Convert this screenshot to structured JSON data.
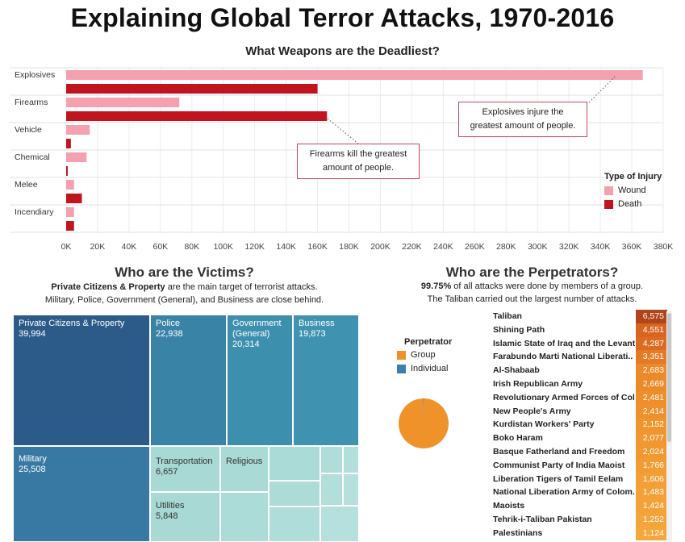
{
  "page": {
    "title": "Explaining Global Terror Attacks, 1970-2016"
  },
  "weapons": {
    "subtitle": "What Weapons are the Deadliest?",
    "callout_explosives": [
      "Explosives injure the",
      "greatest amount of people."
    ],
    "callout_firearms": [
      "Firearms kill the greatest",
      "amount of people."
    ],
    "legend_title": "Type of Injury"
  },
  "chart_data": {
    "type": "bar",
    "orientation": "horizontal",
    "categories": [
      "Explosives",
      "Firearms",
      "Vehicle",
      "Chemical",
      "Melee",
      "Incendiary"
    ],
    "series": [
      {
        "name": "Wound",
        "color": "#f5a0ae",
        "values": [
          367000,
          72000,
          15000,
          13000,
          5000,
          5000
        ]
      },
      {
        "name": "Death",
        "color": "#c0141f",
        "values": [
          160000,
          166000,
          3000,
          1000,
          10000,
          5000
        ]
      }
    ],
    "xticks": [
      "0K",
      "20K",
      "40K",
      "60K",
      "80K",
      "100K",
      "120K",
      "140K",
      "160K",
      "180K",
      "200K",
      "220K",
      "240K",
      "260K",
      "280K",
      "300K",
      "320K",
      "340K",
      "360K",
      "380K"
    ],
    "xlim": [
      0,
      380000
    ],
    "grid": true,
    "legend": "right"
  },
  "victims": {
    "title": "Who are the Victims?",
    "sub_line1_bold": "Private Citizens & Property",
    "sub_line1_rest": " are the main target of terrorist attacks.",
    "sub_line2": "Military, Police, Government (General), and Business are close behind.",
    "cells": [
      {
        "label": "Private Citizens & Property",
        "value": "39,994",
        "color": "#2c5b8a"
      },
      {
        "label": "Police",
        "value": "22,938",
        "color": "#3983a7"
      },
      {
        "label": "Government (General)",
        "value": "20,314",
        "color": "#3d8fae"
      },
      {
        "label": "Business",
        "value": "19,873",
        "color": "#3f93b1"
      },
      {
        "label": "Military",
        "value": "25,508",
        "color": "#3779a2"
      },
      {
        "label": "Transportation",
        "value": "6,657",
        "color": "#a7d9d5"
      },
      {
        "label": "Religious",
        "value": "",
        "color": "#a9dad6"
      },
      {
        "label": "Utilities",
        "value": "5,848",
        "color": "#a8d9d5"
      }
    ]
  },
  "perpetrators": {
    "title": "Who are the Perpetrators?",
    "sub_line1_bold": "99.75%",
    "sub_line1_rest": " of all attacks were done by members of a group.",
    "sub_line2": "The Taliban carried out the largest number of attacks.",
    "legend_title": "Perpetrator",
    "legend": [
      {
        "label": "Group",
        "color": "#f0922a"
      },
      {
        "label": "Individual",
        "color": "#3a7fb0"
      }
    ],
    "group_share_pct": 99.75,
    "rows": [
      {
        "name": "Taliban",
        "value": "6,575",
        "color": "#b0451c"
      },
      {
        "name": "Shining Path",
        "value": "4,551",
        "color": "#d8641f"
      },
      {
        "name": "Islamic State of Iraq and the Levant",
        "value": "4,287",
        "color": "#dc6a20"
      },
      {
        "name": "Farabundo Marti National Liberati..",
        "value": "3,351",
        "color": "#e57a24"
      },
      {
        "name": "Al-Shabaab",
        "value": "2,683",
        "color": "#ec8a29"
      },
      {
        "name": "Irish Republican Army",
        "value": "2,669",
        "color": "#ec8a29"
      },
      {
        "name": "Revolutionary Armed Forces of Col..",
        "value": "2,481",
        "color": "#ee8e2a"
      },
      {
        "name": "New People's Army",
        "value": "2,414",
        "color": "#ef902b"
      },
      {
        "name": "Kurdistan Workers' Party",
        "value": "2,152",
        "color": "#f0952e"
      },
      {
        "name": "Boko Haram",
        "value": "2,077",
        "color": "#f1972f"
      },
      {
        "name": "Basque Fatherland and Freedom",
        "value": "2,024",
        "color": "#f19830"
      },
      {
        "name": "Communist Party of India Maoist",
        "value": "1,766",
        "color": "#f29c33"
      },
      {
        "name": "Liberation Tigers of Tamil Eelam",
        "value": "1,606",
        "color": "#f39f35"
      },
      {
        "name": "National Liberation Army of Colom..",
        "value": "1,483",
        "color": "#f3a137"
      },
      {
        "name": "Maoists",
        "value": "1,424",
        "color": "#f4a238"
      },
      {
        "name": "Tehrik-i-Taliban Pakistan",
        "value": "1,252",
        "color": "#f4a53a"
      },
      {
        "name": "Palestinians",
        "value": "1,124",
        "color": "#f5a73c"
      }
    ]
  }
}
